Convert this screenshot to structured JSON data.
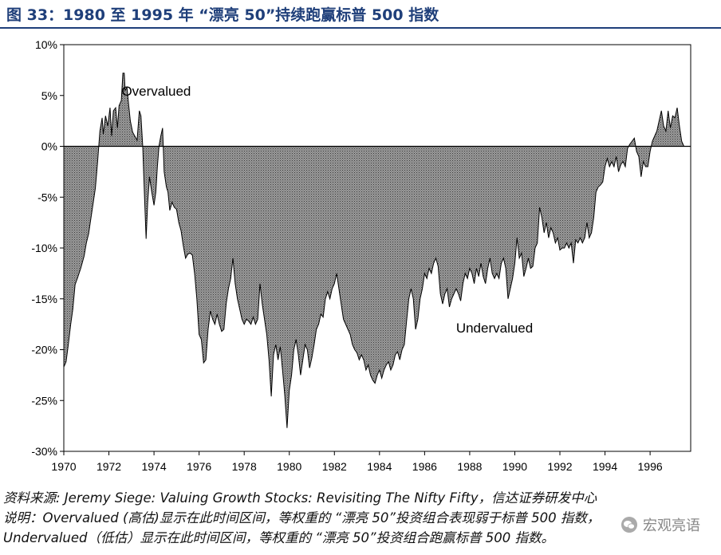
{
  "title": "图 33：1980 至 1995 年 “漂亮 50”持续跑赢标普 500 指数",
  "chart_data": {
    "type": "area",
    "xlim": [
      1970,
      1997.8
    ],
    "ylim": [
      -30,
      10
    ],
    "x_ticks": [
      1970,
      1972,
      1974,
      1976,
      1978,
      1980,
      1982,
      1984,
      1986,
      1988,
      1990,
      1992,
      1994,
      1996
    ],
    "x_tick_labels": [
      "1970",
      "1972",
      "1974",
      "1976",
      "1978",
      "1980",
      "1982",
      "1984",
      "1986",
      "1988",
      "1990",
      "1992",
      "1994",
      "1996"
    ],
    "y_ticks": [
      10,
      5,
      0,
      -5,
      -10,
      -15,
      -20,
      -25,
      -30
    ],
    "y_tick_labels": [
      "10%",
      "5%",
      "0%",
      "-5%",
      "-10%",
      "-15%",
      "-20%",
      "-25%",
      "-30%"
    ],
    "annotations": [
      {
        "text": "Overvalued",
        "x": 1974.1,
        "y": 5.0
      },
      {
        "text": "Undervalued",
        "x": 1989.1,
        "y": -18.3
      }
    ],
    "series": [
      {
        "values": [
          [
            1970.0,
            -21.7
          ],
          [
            1970.1,
            -21.2
          ],
          [
            1970.2,
            -19.5
          ],
          [
            1970.3,
            -17.6
          ],
          [
            1970.4,
            -16.0
          ],
          [
            1970.5,
            -13.6
          ],
          [
            1970.6,
            -13.0
          ],
          [
            1970.75,
            -12.0
          ],
          [
            1970.9,
            -10.8
          ],
          [
            1971.0,
            -9.5
          ],
          [
            1971.1,
            -8.6
          ],
          [
            1971.2,
            -7.1
          ],
          [
            1971.3,
            -5.6
          ],
          [
            1971.4,
            -4.1
          ],
          [
            1971.5,
            -1.5
          ],
          [
            1971.6,
            1.5
          ],
          [
            1971.7,
            2.8
          ],
          [
            1971.75,
            1.2
          ],
          [
            1971.85,
            3.0
          ],
          [
            1971.95,
            2.0
          ],
          [
            1972.05,
            3.8
          ],
          [
            1972.12,
            1.0
          ],
          [
            1972.2,
            3.5
          ],
          [
            1972.3,
            3.8
          ],
          [
            1972.38,
            1.8
          ],
          [
            1972.45,
            4.0
          ],
          [
            1972.55,
            4.5
          ],
          [
            1972.62,
            7.2
          ],
          [
            1972.68,
            7.2
          ],
          [
            1972.72,
            5.5
          ],
          [
            1972.8,
            5.8
          ],
          [
            1972.88,
            4.0
          ],
          [
            1972.95,
            2.5
          ],
          [
            1973.05,
            1.4
          ],
          [
            1973.15,
            1.0
          ],
          [
            1973.25,
            0.6
          ],
          [
            1973.35,
            3.5
          ],
          [
            1973.42,
            3.0
          ],
          [
            1973.5,
            0.0
          ],
          [
            1973.58,
            -5.0
          ],
          [
            1973.65,
            -9.1
          ],
          [
            1973.72,
            -5.5
          ],
          [
            1973.8,
            -3.0
          ],
          [
            1973.9,
            -4.5
          ],
          [
            1974.0,
            -5.8
          ],
          [
            1974.08,
            -4.5
          ],
          [
            1974.15,
            -2.0
          ],
          [
            1974.22,
            0.0
          ],
          [
            1974.3,
            1.0
          ],
          [
            1974.38,
            1.8
          ],
          [
            1974.45,
            -2.5
          ],
          [
            1974.55,
            -4.0
          ],
          [
            1974.62,
            -4.5
          ],
          [
            1974.7,
            -6.3
          ],
          [
            1974.8,
            -5.5
          ],
          [
            1974.9,
            -6.0
          ],
          [
            1975.0,
            -6.2
          ],
          [
            1975.1,
            -7.5
          ],
          [
            1975.2,
            -8.3
          ],
          [
            1975.3,
            -9.8
          ],
          [
            1975.4,
            -11.0
          ],
          [
            1975.5,
            -10.6
          ],
          [
            1975.6,
            -10.5
          ],
          [
            1975.7,
            -10.7
          ],
          [
            1975.8,
            -12.5
          ],
          [
            1975.9,
            -15.0
          ],
          [
            1976.0,
            -18.5
          ],
          [
            1976.1,
            -19.0
          ],
          [
            1976.2,
            -21.3
          ],
          [
            1976.3,
            -21.0
          ],
          [
            1976.4,
            -18.0
          ],
          [
            1976.5,
            -16.2
          ],
          [
            1976.6,
            -17.0
          ],
          [
            1976.7,
            -17.5
          ],
          [
            1976.8,
            -16.5
          ],
          [
            1976.9,
            -17.5
          ],
          [
            1977.0,
            -18.2
          ],
          [
            1977.1,
            -18.0
          ],
          [
            1977.2,
            -15.5
          ],
          [
            1977.3,
            -14.0
          ],
          [
            1977.4,
            -13.0
          ],
          [
            1977.5,
            -11.0
          ],
          [
            1977.6,
            -13.5
          ],
          [
            1977.7,
            -15.0
          ],
          [
            1977.8,
            -16.0
          ],
          [
            1977.9,
            -17.0
          ],
          [
            1978.0,
            -17.5
          ],
          [
            1978.1,
            -17.0
          ],
          [
            1978.2,
            -17.2
          ],
          [
            1978.3,
            -17.5
          ],
          [
            1978.4,
            -16.8
          ],
          [
            1978.5,
            -17.5
          ],
          [
            1978.6,
            -17.0
          ],
          [
            1978.7,
            -13.5
          ],
          [
            1978.8,
            -15.5
          ],
          [
            1978.9,
            -17.0
          ],
          [
            1979.0,
            -18.5
          ],
          [
            1979.1,
            -21.0
          ],
          [
            1979.2,
            -24.6
          ],
          [
            1979.3,
            -20.5
          ],
          [
            1979.4,
            -19.5
          ],
          [
            1979.5,
            -21.0
          ],
          [
            1979.6,
            -19.7
          ],
          [
            1979.7,
            -22.0
          ],
          [
            1979.8,
            -24.5
          ],
          [
            1979.9,
            -27.7
          ],
          [
            1980.0,
            -24.0
          ],
          [
            1980.1,
            -22.5
          ],
          [
            1980.2,
            -20.0
          ],
          [
            1980.3,
            -19.0
          ],
          [
            1980.4,
            -20.5
          ],
          [
            1980.5,
            -22.5
          ],
          [
            1980.6,
            -21.0
          ],
          [
            1980.7,
            -19.5
          ],
          [
            1980.8,
            -20.0
          ],
          [
            1980.9,
            -21.8
          ],
          [
            1981.0,
            -20.8
          ],
          [
            1981.1,
            -19.5
          ],
          [
            1981.2,
            -18.0
          ],
          [
            1981.3,
            -17.5
          ],
          [
            1981.4,
            -16.5
          ],
          [
            1981.5,
            -16.8
          ],
          [
            1981.6,
            -15.0
          ],
          [
            1981.7,
            -14.3
          ],
          [
            1981.8,
            -15.0
          ],
          [
            1981.9,
            -14.0
          ],
          [
            1982.0,
            -13.5
          ],
          [
            1982.1,
            -12.5
          ],
          [
            1982.2,
            -14.0
          ],
          [
            1982.3,
            -15.5
          ],
          [
            1982.4,
            -17.0
          ],
          [
            1982.5,
            -17.5
          ],
          [
            1982.6,
            -18.0
          ],
          [
            1982.7,
            -18.5
          ],
          [
            1982.8,
            -19.5
          ],
          [
            1982.9,
            -20.0
          ],
          [
            1983.0,
            -20.3
          ],
          [
            1983.1,
            -21.0
          ],
          [
            1983.2,
            -20.5
          ],
          [
            1983.3,
            -21.0
          ],
          [
            1983.4,
            -22.0
          ],
          [
            1983.5,
            -21.5
          ],
          [
            1983.6,
            -22.5
          ],
          [
            1983.7,
            -23.0
          ],
          [
            1983.8,
            -23.3
          ],
          [
            1983.9,
            -22.5
          ],
          [
            1984.0,
            -22.0
          ],
          [
            1984.1,
            -22.8
          ],
          [
            1984.2,
            -22.0
          ],
          [
            1984.3,
            -21.5
          ],
          [
            1984.4,
            -21.2
          ],
          [
            1984.5,
            -22.0
          ],
          [
            1984.6,
            -21.5
          ],
          [
            1984.7,
            -20.5
          ],
          [
            1984.8,
            -20.2
          ],
          [
            1984.9,
            -21.0
          ],
          [
            1985.0,
            -20.0
          ],
          [
            1985.1,
            -19.5
          ],
          [
            1985.2,
            -17.2
          ],
          [
            1985.3,
            -15.0
          ],
          [
            1985.4,
            -14.0
          ],
          [
            1985.5,
            -15.0
          ],
          [
            1985.6,
            -18.0
          ],
          [
            1985.7,
            -17.0
          ],
          [
            1985.8,
            -15.0
          ],
          [
            1985.9,
            -14.0
          ],
          [
            1986.0,
            -12.5
          ],
          [
            1986.1,
            -13.0
          ],
          [
            1986.2,
            -12.0
          ],
          [
            1986.3,
            -12.5
          ],
          [
            1986.4,
            -11.5
          ],
          [
            1986.5,
            -11.0
          ],
          [
            1986.6,
            -11.8
          ],
          [
            1986.7,
            -14.5
          ],
          [
            1986.8,
            -15.5
          ],
          [
            1986.9,
            -14.5
          ],
          [
            1987.0,
            -14.0
          ],
          [
            1987.1,
            -15.8
          ],
          [
            1987.2,
            -15.0
          ],
          [
            1987.3,
            -14.5
          ],
          [
            1987.4,
            -14.0
          ],
          [
            1987.5,
            -14.5
          ],
          [
            1987.6,
            -15.2
          ],
          [
            1987.7,
            -13.5
          ],
          [
            1987.8,
            -12.5
          ],
          [
            1987.9,
            -13.0
          ],
          [
            1988.0,
            -12.0
          ],
          [
            1988.1,
            -12.5
          ],
          [
            1988.2,
            -13.5
          ],
          [
            1988.3,
            -12.0
          ],
          [
            1988.4,
            -12.8
          ],
          [
            1988.5,
            -11.5
          ],
          [
            1988.6,
            -12.8
          ],
          [
            1988.7,
            -13.5
          ],
          [
            1988.8,
            -12.0
          ],
          [
            1988.9,
            -11.0
          ],
          [
            1989.0,
            -12.5
          ],
          [
            1989.1,
            -13.0
          ],
          [
            1989.2,
            -12.5
          ],
          [
            1989.3,
            -13.0
          ],
          [
            1989.4,
            -11.5
          ],
          [
            1989.5,
            -11.0
          ],
          [
            1989.6,
            -12.0
          ],
          [
            1989.7,
            -15.0
          ],
          [
            1989.8,
            -14.0
          ],
          [
            1989.9,
            -13.0
          ],
          [
            1990.0,
            -11.5
          ],
          [
            1990.1,
            -9.0
          ],
          [
            1990.2,
            -11.0
          ],
          [
            1990.3,
            -10.5
          ],
          [
            1990.4,
            -12.8
          ],
          [
            1990.5,
            -12.0
          ],
          [
            1990.6,
            -11.0
          ],
          [
            1990.7,
            -12.0
          ],
          [
            1990.8,
            -11.8
          ],
          [
            1990.9,
            -10.0
          ],
          [
            1991.0,
            -9.5
          ],
          [
            1991.1,
            -6.0
          ],
          [
            1991.2,
            -7.0
          ],
          [
            1991.3,
            -8.5
          ],
          [
            1991.4,
            -7.5
          ],
          [
            1991.5,
            -9.0
          ],
          [
            1991.6,
            -8.0
          ],
          [
            1991.7,
            -8.5
          ],
          [
            1991.8,
            -9.5
          ],
          [
            1991.9,
            -9.0
          ],
          [
            1992.0,
            -10.2
          ],
          [
            1992.1,
            -10.0
          ],
          [
            1992.2,
            -10.0
          ],
          [
            1992.3,
            -9.5
          ],
          [
            1992.4,
            -10.0
          ],
          [
            1992.5,
            -9.5
          ],
          [
            1992.6,
            -11.5
          ],
          [
            1992.7,
            -9.2
          ],
          [
            1992.8,
            -9.5
          ],
          [
            1992.9,
            -9.0
          ],
          [
            1993.0,
            -9.5
          ],
          [
            1993.1,
            -9.0
          ],
          [
            1993.2,
            -7.5
          ],
          [
            1993.3,
            -9.0
          ],
          [
            1993.4,
            -8.5
          ],
          [
            1993.5,
            -7.0
          ],
          [
            1993.6,
            -4.5
          ],
          [
            1993.7,
            -4.0
          ],
          [
            1993.8,
            -3.8
          ],
          [
            1993.9,
            -3.5
          ],
          [
            1994.0,
            -2.0
          ],
          [
            1994.1,
            -1.2
          ],
          [
            1994.2,
            -2.0
          ],
          [
            1994.3,
            -1.5
          ],
          [
            1994.4,
            -2.0
          ],
          [
            1994.5,
            -1.0
          ],
          [
            1994.6,
            -2.5
          ],
          [
            1994.7,
            -1.8
          ],
          [
            1994.8,
            -1.5
          ],
          [
            1994.9,
            -2.0
          ],
          [
            1995.0,
            -0.2
          ],
          [
            1995.1,
            0.2
          ],
          [
            1995.2,
            0.5
          ],
          [
            1995.3,
            0.8
          ],
          [
            1995.4,
            -0.5
          ],
          [
            1995.5,
            -1.0
          ],
          [
            1995.6,
            -3.0
          ],
          [
            1995.7,
            -1.5
          ],
          [
            1995.8,
            -2.0
          ],
          [
            1995.9,
            -2.0
          ],
          [
            1996.0,
            -0.5
          ],
          [
            1996.1,
            0.5
          ],
          [
            1996.2,
            1.0
          ],
          [
            1996.3,
            1.5
          ],
          [
            1996.4,
            2.5
          ],
          [
            1996.5,
            3.5
          ],
          [
            1996.6,
            2.0
          ],
          [
            1996.7,
            1.5
          ],
          [
            1996.8,
            3.5
          ],
          [
            1996.9,
            1.8
          ],
          [
            1997.0,
            3.0
          ],
          [
            1997.1,
            2.8
          ],
          [
            1997.2,
            3.8
          ],
          [
            1997.3,
            2.0
          ],
          [
            1997.4,
            0.5
          ],
          [
            1997.5,
            0.0
          ]
        ]
      }
    ]
  },
  "source_line": "资料来源: Jeremy Siege: Valuing Growth Stocks: Revisiting The Nifty Fifty，信达证券研发中心",
  "note_line_1": "说明：Overvalued (高估)显示在此时间区间，等权重的 “漂亮 50”投资组合表现弱于标普 500 指数，",
  "note_line_2": "Undervalued（低估）显示在此时间区间，等权重的 “漂亮 50”投资组合跑赢标普 500 指数。",
  "watermark": "宏观亮语",
  "colors": {
    "title": "#1f3f7a",
    "fill": "#8c8c8c",
    "axis": "#000000"
  }
}
